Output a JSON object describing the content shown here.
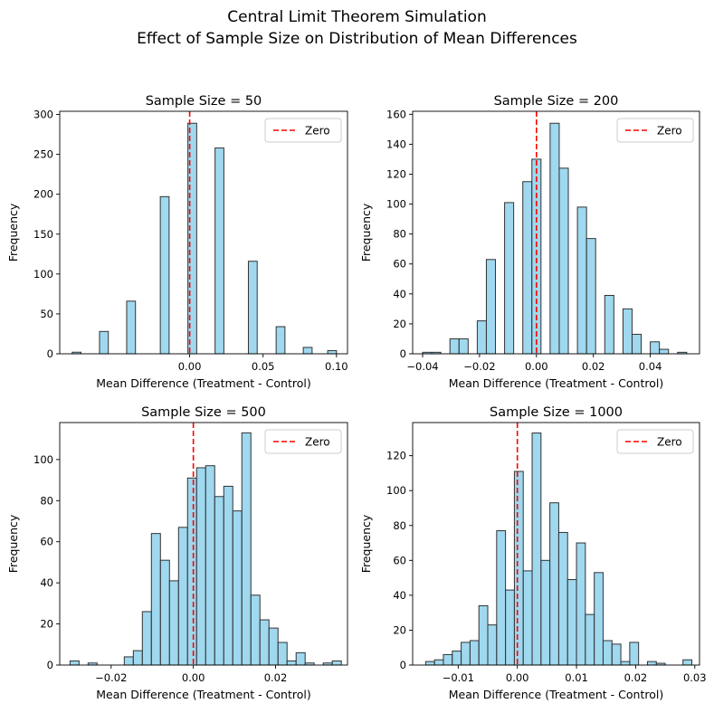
{
  "figure": {
    "title_line1": "Central Limit Theorem Simulation",
    "title_line2": "Effect of Sample Size on Distribution of Mean Differences"
  },
  "colors": {
    "bar_fill": "#87ceeb",
    "bar_edge": "#333333",
    "zero_line": "#ff0000"
  },
  "chart_data": [
    {
      "type": "bar",
      "title": "Sample Size = 50",
      "xlabel": "Mean Difference (Treatment - Control)",
      "ylabel": "Frequency",
      "xlim": [
        -0.0885,
        0.1075
      ],
      "ylim": [
        0,
        304
      ],
      "xticks": [
        0.0,
        0.05,
        0.1
      ],
      "xtick_labels": [
        "0.00",
        "0.05",
        "0.10"
      ],
      "yticks": [
        0,
        50,
        100,
        150,
        200,
        250,
        300
      ],
      "legend": {
        "label": "Zero",
        "position": "upper right"
      },
      "reference_line": {
        "x": 0,
        "style": "dashed",
        "color": "red"
      },
      "bins": [
        {
          "x0": -0.08,
          "x1": -0.074,
          "count": 2
        },
        {
          "x0": -0.0614,
          "x1": -0.0554,
          "count": 28
        },
        {
          "x0": -0.0429,
          "x1": -0.0369,
          "count": 66
        },
        {
          "x0": -0.02,
          "x1": -0.014,
          "count": 197
        },
        {
          "x0": -0.0012,
          "x1": 0.0048,
          "count": 289
        },
        {
          "x0": 0.0173,
          "x1": 0.0233,
          "count": 258
        },
        {
          "x0": 0.04,
          "x1": 0.046,
          "count": 116
        },
        {
          "x0": 0.0589,
          "x1": 0.0649,
          "count": 34
        },
        {
          "x0": 0.0774,
          "x1": 0.0834,
          "count": 8
        },
        {
          "x0": 0.094,
          "x1": 0.1,
          "count": 4
        }
      ]
    },
    {
      "type": "bar",
      "title": "Sample Size = 200",
      "xlabel": "Mean Difference (Treatment - Control)",
      "ylabel": "Frequency",
      "xlim": [
        -0.0435,
        0.0573
      ],
      "ylim": [
        0,
        162
      ],
      "xticks": [
        -0.04,
        -0.02,
        0.0,
        0.02,
        0.04
      ],
      "xtick_labels": [
        "−0.04",
        "−0.02",
        "0.00",
        "0.02",
        "0.04"
      ],
      "yticks": [
        0,
        20,
        40,
        60,
        80,
        100,
        120,
        140,
        160
      ],
      "legend": {
        "label": "Zero",
        "position": "upper right"
      },
      "reference_line": {
        "x": 0,
        "style": "dashed",
        "color": "red"
      },
      "bins": [
        {
          "x0": -0.04,
          "x1": -0.0368,
          "count": 1
        },
        {
          "x0": -0.0368,
          "x1": -0.0336,
          "count": 1
        },
        {
          "x0": -0.0304,
          "x1": -0.0272,
          "count": 10
        },
        {
          "x0": -0.0272,
          "x1": -0.024,
          "count": 10
        },
        {
          "x0": -0.0208,
          "x1": -0.0176,
          "count": 22
        },
        {
          "x0": -0.0176,
          "x1": -0.0144,
          "count": 63
        },
        {
          "x0": -0.0112,
          "x1": -0.008,
          "count": 101
        },
        {
          "x0": -0.0048,
          "x1": -0.0016,
          "count": 115
        },
        {
          "x0": -0.0016,
          "x1": 0.0016,
          "count": 130
        },
        {
          "x0": 0.0048,
          "x1": 0.008,
          "count": 154
        },
        {
          "x0": 0.008,
          "x1": 0.0112,
          "count": 124
        },
        {
          "x0": 0.0144,
          "x1": 0.0176,
          "count": 98
        },
        {
          "x0": 0.0176,
          "x1": 0.0208,
          "count": 77
        },
        {
          "x0": 0.024,
          "x1": 0.0272,
          "count": 39
        },
        {
          "x0": 0.0304,
          "x1": 0.0336,
          "count": 30
        },
        {
          "x0": 0.0336,
          "x1": 0.0368,
          "count": 13
        },
        {
          "x0": 0.04,
          "x1": 0.0432,
          "count": 8
        },
        {
          "x0": 0.0432,
          "x1": 0.0464,
          "count": 3
        },
        {
          "x0": 0.0496,
          "x1": 0.0528,
          "count": 1
        }
      ]
    },
    {
      "type": "bar",
      "title": "Sample Size = 500",
      "xlabel": "Mean Difference (Treatment - Control)",
      "ylabel": "Frequency",
      "xlim": [
        -0.0325,
        0.0375
      ],
      "ylim": [
        0,
        118
      ],
      "xticks": [
        -0.02,
        0.0,
        0.02
      ],
      "xtick_labels": [
        "−0.02",
        "0.00",
        "0.02"
      ],
      "yticks": [
        0,
        20,
        40,
        60,
        80,
        100
      ],
      "legend": {
        "label": "Zero",
        "position": "upper right"
      },
      "reference_line": {
        "x": 0,
        "style": "dashed",
        "color": "red"
      },
      "bins": [
        {
          "x0": -0.03,
          "x1": -0.0278,
          "count": 2
        },
        {
          "x0": -0.0256,
          "x1": -0.0234,
          "count": 1
        },
        {
          "x0": -0.0168,
          "x1": -0.0146,
          "count": 4
        },
        {
          "x0": -0.0146,
          "x1": -0.0124,
          "count": 7
        },
        {
          "x0": -0.0124,
          "x1": -0.0102,
          "count": 26
        },
        {
          "x0": -0.0102,
          "x1": -0.008,
          "count": 64
        },
        {
          "x0": -0.008,
          "x1": -0.0058,
          "count": 51
        },
        {
          "x0": -0.0058,
          "x1": -0.0036,
          "count": 41
        },
        {
          "x0": -0.0036,
          "x1": -0.0014,
          "count": 67
        },
        {
          "x0": -0.0014,
          "x1": 0.0008,
          "count": 91
        },
        {
          "x0": 0.0008,
          "x1": 0.003,
          "count": 96
        },
        {
          "x0": 0.003,
          "x1": 0.0052,
          "count": 97
        },
        {
          "x0": 0.0052,
          "x1": 0.0074,
          "count": 82
        },
        {
          "x0": 0.0074,
          "x1": 0.0096,
          "count": 87
        },
        {
          "x0": 0.0096,
          "x1": 0.0118,
          "count": 75
        },
        {
          "x0": 0.0118,
          "x1": 0.014,
          "count": 113
        },
        {
          "x0": 0.014,
          "x1": 0.0162,
          "count": 34
        },
        {
          "x0": 0.0162,
          "x1": 0.0184,
          "count": 22
        },
        {
          "x0": 0.0184,
          "x1": 0.0206,
          "count": 18
        },
        {
          "x0": 0.0206,
          "x1": 0.0228,
          "count": 11
        },
        {
          "x0": 0.0228,
          "x1": 0.025,
          "count": 2
        },
        {
          "x0": 0.025,
          "x1": 0.0272,
          "count": 6
        },
        {
          "x0": 0.0272,
          "x1": 0.0294,
          "count": 1
        },
        {
          "x0": 0.0316,
          "x1": 0.0338,
          "count": 1
        },
        {
          "x0": 0.0338,
          "x1": 0.036,
          "count": 2
        }
      ]
    },
    {
      "type": "bar",
      "title": "Sample Size = 1000",
      "xlabel": "Mean Difference (Treatment - Control)",
      "ylabel": "Frequency",
      "xlim": [
        -0.0177,
        0.0308
      ],
      "ylim": [
        0,
        139
      ],
      "xticks": [
        -0.01,
        0.0,
        0.01,
        0.02,
        0.03
      ],
      "xtick_labels": [
        "−0.01",
        "0.00",
        "0.01",
        "0.02",
        "0.03"
      ],
      "yticks": [
        0,
        20,
        40,
        60,
        80,
        100,
        120
      ],
      "legend": {
        "label": "Zero",
        "position": "upper right"
      },
      "reference_line": {
        "x": 0,
        "style": "dashed",
        "color": "red"
      },
      "bins": [
        {
          "x0": -0.0155,
          "x1": -0.014,
          "count": 2
        },
        {
          "x0": -0.014,
          "x1": -0.0125,
          "count": 3
        },
        {
          "x0": -0.0125,
          "x1": -0.011,
          "count": 6
        },
        {
          "x0": -0.011,
          "x1": -0.0095,
          "count": 8
        },
        {
          "x0": -0.0095,
          "x1": -0.008,
          "count": 13
        },
        {
          "x0": -0.008,
          "x1": -0.0065,
          "count": 14
        },
        {
          "x0": -0.0065,
          "x1": -0.005,
          "count": 34
        },
        {
          "x0": -0.005,
          "x1": -0.0035,
          "count": 23
        },
        {
          "x0": -0.0035,
          "x1": -0.002,
          "count": 77
        },
        {
          "x0": -0.002,
          "x1": -0.0005,
          "count": 43
        },
        {
          "x0": -0.0005,
          "x1": 0.001,
          "count": 111
        },
        {
          "x0": 0.001,
          "x1": 0.0025,
          "count": 54
        },
        {
          "x0": 0.0025,
          "x1": 0.004,
          "count": 133
        },
        {
          "x0": 0.004,
          "x1": 0.0055,
          "count": 60
        },
        {
          "x0": 0.0055,
          "x1": 0.007,
          "count": 93
        },
        {
          "x0": 0.007,
          "x1": 0.0085,
          "count": 76
        },
        {
          "x0": 0.0085,
          "x1": 0.01,
          "count": 49
        },
        {
          "x0": 0.01,
          "x1": 0.0115,
          "count": 70
        },
        {
          "x0": 0.0115,
          "x1": 0.013,
          "count": 29
        },
        {
          "x0": 0.013,
          "x1": 0.0145,
          "count": 53
        },
        {
          "x0": 0.0145,
          "x1": 0.016,
          "count": 14
        },
        {
          "x0": 0.016,
          "x1": 0.0175,
          "count": 12
        },
        {
          "x0": 0.0175,
          "x1": 0.019,
          "count": 2
        },
        {
          "x0": 0.019,
          "x1": 0.0205,
          "count": 13
        },
        {
          "x0": 0.022,
          "x1": 0.0235,
          "count": 2
        },
        {
          "x0": 0.0235,
          "x1": 0.025,
          "count": 1
        },
        {
          "x0": 0.028,
          "x1": 0.0295,
          "count": 3
        }
      ]
    }
  ]
}
